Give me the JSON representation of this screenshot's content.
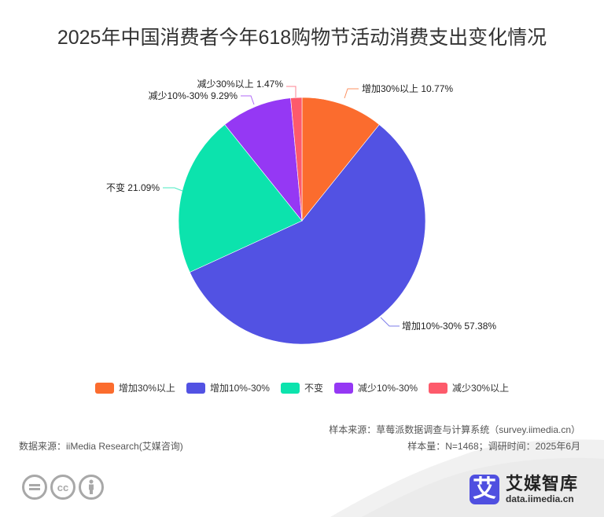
{
  "title": "2025年中国消费者今年618购物节活动消费支出变化情况",
  "chart_data": {
    "type": "pie",
    "title": "2025年中国消费者今年618购物节活动消费支出变化情况",
    "categories": [
      "增加30%以上",
      "增加10%-30%",
      "不变",
      "减少10%-30%",
      "减少30%以上"
    ],
    "values": [
      10.77,
      57.38,
      21.09,
      9.29,
      1.47
    ],
    "unit": "%",
    "colors": [
      "#fb6c2e",
      "#5252e3",
      "#0ce3ad",
      "#9538f4",
      "#fd5a6b"
    ],
    "labels": [
      "增加30%以上 10.77%",
      "增加10%-30% 57.38%",
      "不变 21.09%",
      "减少10%-30% 9.29%",
      "减少30%以上 1.47%"
    ],
    "start_angle": "top, clockwise",
    "legend_position": "bottom"
  },
  "legend": [
    {
      "label": "增加30%以上",
      "color": "#fb6c2e"
    },
    {
      "label": "增加10%-30%",
      "color": "#5252e3"
    },
    {
      "label": "不变",
      "color": "#0ce3ad"
    },
    {
      "label": "减少10%-30%",
      "color": "#9538f4"
    },
    {
      "label": "减少30%以上",
      "color": "#fd5a6b"
    }
  ],
  "source": {
    "sample_source": "样本来源：草莓派数据调查与计算系统（survey.iimedia.cn）",
    "data_source": "数据来源：iiMedia Research(艾媒咨询)",
    "sample_info": "样本量：N=1468；调研时间：2025年6月"
  },
  "license_icons": [
    "equals-icon",
    "cc-icon",
    "person-icon"
  ],
  "license_glyphs": [
    "=",
    "cc",
    ""
  ],
  "brand": {
    "logo_char": "艾",
    "name": "艾媒智库",
    "url": "data.iimedia.cn"
  }
}
